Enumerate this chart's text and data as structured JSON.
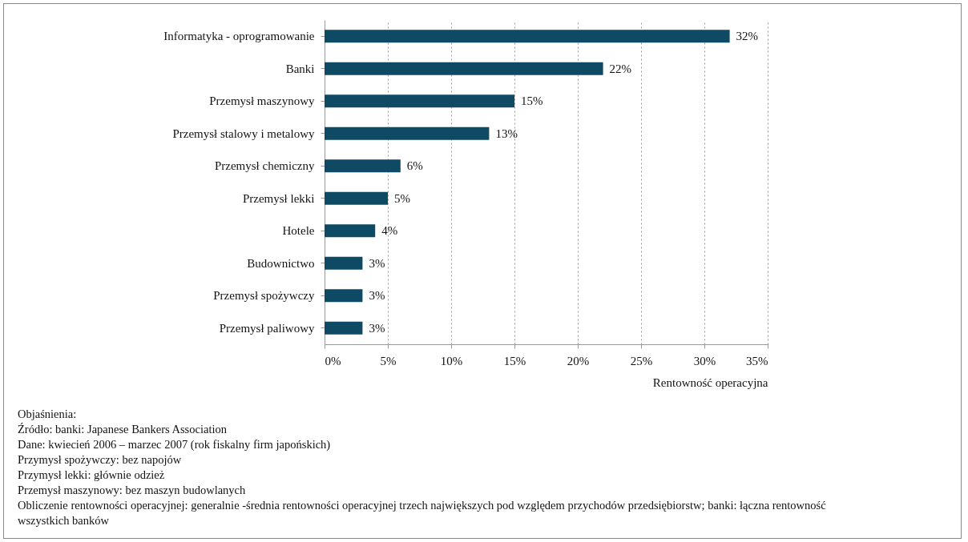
{
  "chart_data": {
    "type": "bar",
    "orientation": "horizontal",
    "xlabel": "Rentowność operacyjna",
    "categories": [
      "Informatyka - oprogramowanie",
      "Banki",
      "Przemysł maszynowy",
      "Przemysł stalowy i metalowy",
      "Przemysł chemiczny",
      "Przemysł lekki",
      "Hotele",
      "Budownictwo",
      "Przemysł spożywczy",
      "Przemysł paliwowy"
    ],
    "values": [
      32,
      22,
      15,
      13,
      6,
      5,
      4,
      3,
      3,
      3
    ],
    "value_labels": [
      "32%",
      "22%",
      "15%",
      "13%",
      "6%",
      "5%",
      "4%",
      "3%",
      "3%",
      "3%"
    ],
    "color": "#0e4a64",
    "xlim": [
      0,
      35
    ],
    "xticks": [
      {
        "value": 0,
        "label": "0%"
      },
      {
        "value": 5,
        "label": "5%"
      },
      {
        "value": 10,
        "label": "10%"
      },
      {
        "value": 15,
        "label": "15%"
      },
      {
        "value": 20,
        "label": "20%"
      },
      {
        "value": 25,
        "label": "25%"
      },
      {
        "value": 30,
        "label": "30%"
      },
      {
        "value": 35,
        "label": "35%"
      }
    ],
    "grid": "x",
    "annotations": [
      "Objaśnienia:",
      "Źródło: banki: Japanese Bankers Association",
      "Dane: kwiecień 2006 – marzec 2007 (rok fiskalny firm japońskich)",
      "Przymysł spożywczy: bez napojów",
      "Przymysł lekki: głównie odzież",
      "Przemysł maszynowy: bez maszyn budowlanych",
      "Obliczenie rentowności operacyjnej: generalnie -średnia rentowności operacyjnej trzech największych pod względem przychodów przedsiębiorstw; banki: łączna rentowność wszystkich banków"
    ]
  }
}
